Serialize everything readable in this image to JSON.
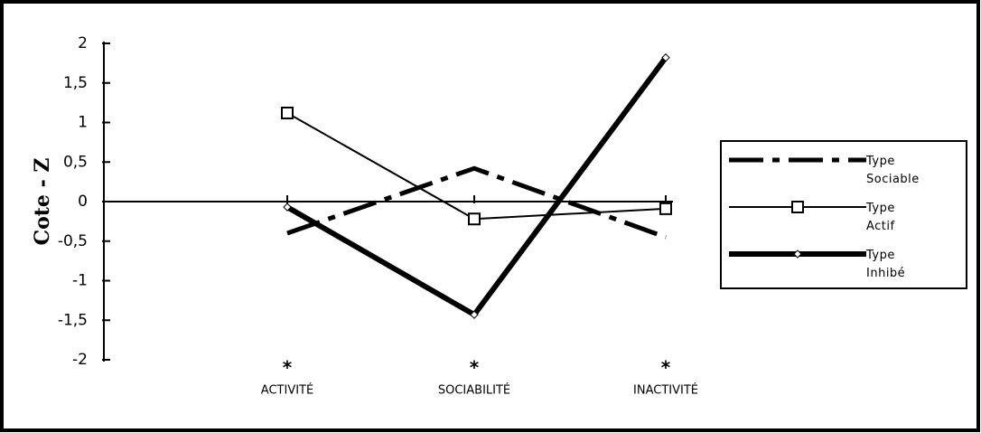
{
  "chart_data": {
    "type": "line",
    "ylabel": "Cote - Z",
    "categories": [
      "ACTIVITÉ",
      "SOCIABILITÉ",
      "INACTIVITÉ"
    ],
    "annotations": [
      "*",
      "*",
      "*"
    ],
    "ylim": [
      -2,
      2
    ],
    "yticks": [
      {
        "value": -2,
        "label": "-2"
      },
      {
        "value": -1.5,
        "label": "-1,5"
      },
      {
        "value": -1,
        "label": "-1"
      },
      {
        "value": -0.5,
        "label": "-0,5"
      },
      0,
      {
        "value": 0.5,
        "label": "0,5"
      },
      1,
      {
        "value": 1.5,
        "label": "1,5"
      },
      2
    ],
    "series": [
      {
        "name": "Type Sociable",
        "color": "#000000",
        "line_style": "dash-dot",
        "marker": "none",
        "values": [
          -0.4,
          0.42,
          -0.45
        ]
      },
      {
        "name": "Type Actif",
        "color": "#000000",
        "line_style": "solid",
        "marker": "square",
        "values": [
          1.12,
          -0.22,
          -0.09
        ]
      },
      {
        "name": "Type Inhibé",
        "color": "#000000",
        "line_style": "heavy",
        "marker": "diamond",
        "values": [
          -0.07,
          -1.43,
          1.82
        ]
      }
    ]
  }
}
